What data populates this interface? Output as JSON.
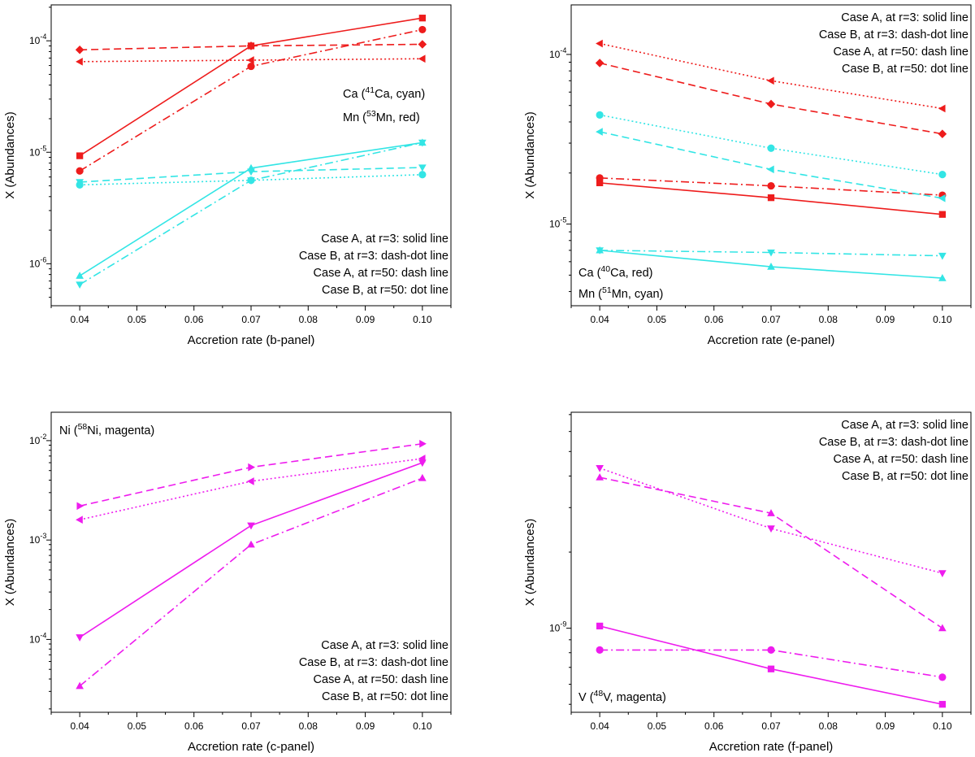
{
  "chart_data": [
    {
      "panel": "b",
      "type": "line",
      "xscale": "linear",
      "yscale": "log",
      "x": [
        0.04,
        0.07,
        0.1
      ],
      "xlim": [
        0.035,
        0.105
      ],
      "ylim": [
        4.2e-07,
        0.00021
      ],
      "xticks": [
        0.04,
        0.05,
        0.06,
        0.07,
        0.08,
        0.09,
        0.1
      ],
      "xtick_labels": [
        "0.04",
        "0.05",
        "0.06",
        "0.07",
        "0.08",
        "0.09",
        "0.10"
      ],
      "yticks": [
        1e-06,
        1e-05,
        0.0001
      ],
      "ytick_labels": [
        [
          "10",
          "-6"
        ],
        [
          "10",
          "-5"
        ],
        [
          "10",
          "-4"
        ]
      ],
      "xlabel": "Accretion rate   (b-panel)",
      "ylabel": "X   (Abundances)",
      "legend": [
        "Case A, at r=3:  solid line",
        "Case B, at r=3:  dash-dot line",
        "Case A, at r=50:  dash line",
        "Case B, at r=50:  dot line"
      ],
      "legend_position": "bottom-right",
      "species_labels": [
        {
          "pre": "Ca (",
          "sup": "41",
          "post": "Ca, cyan)"
        },
        {
          "pre": "Mn (",
          "sup": "53",
          "post": "Mn, red)"
        }
      ],
      "species_position": "right",
      "series": [
        {
          "name": "Mn Case A r=3",
          "color": "#ee1c1c",
          "style": "solid",
          "marker": "square",
          "values": [
            9.3e-06,
            9e-05,
            0.00016
          ]
        },
        {
          "name": "Mn Case B r=3",
          "color": "#ee1c1c",
          "style": "dashdot",
          "marker": "circle",
          "values": [
            6.8e-06,
            5.9e-05,
            0.000126
          ]
        },
        {
          "name": "Mn Case A r=50",
          "color": "#ee1c1c",
          "style": "dash",
          "marker": "diamond",
          "values": [
            8.3e-05,
            9e-05,
            9.3e-05
          ]
        },
        {
          "name": "Mn Case B r=50",
          "color": "#ee1c1c",
          "style": "dot",
          "marker": "triangle-left",
          "values": [
            6.5e-05,
            6.7e-05,
            6.9e-05
          ]
        },
        {
          "name": "Ca Case A r=3",
          "color": "#33e5e5",
          "style": "solid",
          "marker": "triangle-up",
          "values": [
            7.8e-07,
            7.2e-06,
            1.22e-05
          ]
        },
        {
          "name": "Ca Case B r=3",
          "color": "#33e5e5",
          "style": "dashdot",
          "marker": "triangle-down",
          "values": [
            6.5e-07,
            5.6e-06,
            1.22e-05
          ]
        },
        {
          "name": "Ca Case A r=50",
          "color": "#33e5e5",
          "style": "dash",
          "marker": "triangle-down",
          "values": [
            5.4e-06,
            6.7e-06,
            7.3e-06
          ]
        },
        {
          "name": "Ca Case B r=50",
          "color": "#33e5e5",
          "style": "dot",
          "marker": "circle",
          "values": [
            5.1e-06,
            5.6e-06,
            6.3e-06
          ]
        }
      ]
    },
    {
      "panel": "e",
      "type": "line",
      "xscale": "linear",
      "yscale": "log",
      "x": [
        0.04,
        0.07,
        0.1
      ],
      "xlim": [
        0.035,
        0.105
      ],
      "ylim": [
        3.3e-06,
        0.000196
      ],
      "xticks": [
        0.04,
        0.05,
        0.06,
        0.07,
        0.08,
        0.09,
        0.1
      ],
      "xtick_labels": [
        "0.04",
        "0.05",
        "0.06",
        "0.07",
        "0.08",
        "0.09",
        "0.10"
      ],
      "yticks": [
        1e-05,
        0.0001
      ],
      "ytick_labels": [
        [
          "10",
          "-5"
        ],
        [
          "10",
          "-4"
        ]
      ],
      "xlabel": "Accretion rate   (e-panel)",
      "ylabel": "X   (Abundances)",
      "legend": [
        "Case A, at r=3:  solid line",
        "Case B, at r=3:  dash-dot line",
        "Case A, at r=50:  dash line",
        "Case B, at r=50:  dot line"
      ],
      "legend_position": "top-right",
      "species_labels": [
        {
          "pre": "Ca (",
          "sup": "40",
          "post": "Ca, red)"
        },
        {
          "pre": "Mn (",
          "sup": "51",
          "post": "Mn, cyan)"
        }
      ],
      "species_position": "bottom-left",
      "series": [
        {
          "name": "Ca Case A r=3",
          "color": "#ee1c1c",
          "style": "solid",
          "marker": "square",
          "values": [
            1.75e-05,
            1.43e-05,
            1.14e-05
          ]
        },
        {
          "name": "Ca Case B r=3",
          "color": "#ee1c1c",
          "style": "dashdot",
          "marker": "circle",
          "values": [
            1.87e-05,
            1.68e-05,
            1.48e-05
          ]
        },
        {
          "name": "Ca Case A r=50",
          "color": "#ee1c1c",
          "style": "dash",
          "marker": "diamond",
          "values": [
            8.9e-05,
            5.1e-05,
            3.4e-05
          ]
        },
        {
          "name": "Ca Case B r=50",
          "color": "#ee1c1c",
          "style": "dot",
          "marker": "triangle-left",
          "values": [
            0.000116,
            7e-05,
            4.8e-05
          ]
        },
        {
          "name": "Mn Case A r=3",
          "color": "#33e5e5",
          "style": "solid",
          "marker": "triangle-up",
          "values": [
            7e-06,
            5.6e-06,
            4.8e-06
          ]
        },
        {
          "name": "Mn Case B r=3",
          "color": "#33e5e5",
          "style": "dashdot",
          "marker": "triangle-down",
          "values": [
            7e-06,
            6.8e-06,
            6.5e-06
          ]
        },
        {
          "name": "Mn Case A r=50",
          "color": "#33e5e5",
          "style": "dash",
          "marker": "triangle-left",
          "values": [
            3.5e-05,
            2.1e-05,
            1.42e-05
          ]
        },
        {
          "name": "Mn Case B r=50",
          "color": "#33e5e5",
          "style": "dot",
          "marker": "circle",
          "values": [
            4.4e-05,
            2.8e-05,
            1.96e-05
          ]
        }
      ]
    },
    {
      "panel": "c",
      "type": "line",
      "xscale": "linear",
      "yscale": "log",
      "x": [
        0.04,
        0.07,
        0.1
      ],
      "xlim": [
        0.035,
        0.105
      ],
      "ylim": [
        1.85e-05,
        0.0193
      ],
      "xticks": [
        0.04,
        0.05,
        0.06,
        0.07,
        0.08,
        0.09,
        0.1
      ],
      "xtick_labels": [
        "0.04",
        "0.05",
        "0.06",
        "0.07",
        "0.08",
        "0.09",
        "0.10"
      ],
      "yticks": [
        0.0001,
        0.001,
        0.01
      ],
      "ytick_labels": [
        [
          "10",
          "-4"
        ],
        [
          "10",
          "-3"
        ],
        [
          "10",
          "-2"
        ]
      ],
      "xlabel": "Accretion rate   (c-panel)",
      "ylabel": "X   (Abundances)",
      "legend": [
        "Case A, at r=3:  solid line",
        "Case B, at r=3:  dash-dot line",
        "Case A, at r=50:  dash line",
        "Case B, at r=50:  dot line"
      ],
      "legend_position": "bottom-right",
      "species_labels": [
        {
          "pre": "Ni (",
          "sup": "58",
          "post": "Ni, magenta)"
        }
      ],
      "species_position": "top-left",
      "series": [
        {
          "name": "Ni Case A r=3",
          "color": "#ee1cee",
          "style": "solid",
          "marker": "triangle-down",
          "values": [
            0.000105,
            0.0014,
            0.006
          ]
        },
        {
          "name": "Ni Case B r=3",
          "color": "#ee1cee",
          "style": "dashdot",
          "marker": "triangle-up",
          "values": [
            3.4e-05,
            0.0009,
            0.0042
          ]
        },
        {
          "name": "Ni Case A r=50",
          "color": "#ee1cee",
          "style": "dash",
          "marker": "triangle-right",
          "values": [
            0.0022,
            0.0054,
            0.0093
          ]
        },
        {
          "name": "Ni Case B r=50",
          "color": "#ee1cee",
          "style": "dot",
          "marker": "triangle-left",
          "values": [
            0.0016,
            0.0039,
            0.0066
          ]
        }
      ]
    },
    {
      "panel": "f",
      "type": "line",
      "xscale": "linear",
      "yscale": "log",
      "x": [
        0.04,
        0.07,
        0.1
      ],
      "xlim": [
        0.035,
        0.105
      ],
      "ylim": [
        4.65e-10,
        7.15e-09
      ],
      "xticks": [
        0.04,
        0.05,
        0.06,
        0.07,
        0.08,
        0.09,
        0.1
      ],
      "xtick_labels": [
        "0.04",
        "0.05",
        "0.06",
        "0.07",
        "0.08",
        "0.09",
        "0.10"
      ],
      "yticks": [
        1e-09
      ],
      "ytick_labels": [
        [
          "10",
          "-9"
        ]
      ],
      "xlabel": "Accretion rate   (f-panel)",
      "ylabel": "X   (Abundances)",
      "legend": [
        "Case A, at r=3:  solid line",
        "Case B, at r=3:  dash-dot line",
        "Case A, at r=50:  dash line",
        "Case B, at r=50:  dot line"
      ],
      "legend_position": "top-right",
      "species_labels": [
        {
          "pre": "V (",
          "sup": "48",
          "post": "V, magenta)"
        }
      ],
      "species_position": "bottom-left",
      "series": [
        {
          "name": "V Case A r=3",
          "color": "#ee1cee",
          "style": "solid",
          "marker": "square",
          "values": [
            1.02e-09,
            6.9e-10,
            5e-10
          ]
        },
        {
          "name": "V Case B r=3",
          "color": "#ee1cee",
          "style": "dashdot",
          "marker": "circle",
          "values": [
            8.2e-10,
            8.2e-10,
            6.4e-10
          ]
        },
        {
          "name": "V Case A r=50",
          "color": "#ee1cee",
          "style": "dash",
          "marker": "triangle-up",
          "values": [
            3.95e-09,
            2.85e-09,
            1e-09
          ]
        },
        {
          "name": "V Case B r=50",
          "color": "#ee1cee",
          "style": "dot",
          "marker": "triangle-down",
          "values": [
            4.3e-09,
            2.48e-09,
            1.65e-09
          ]
        }
      ]
    }
  ]
}
